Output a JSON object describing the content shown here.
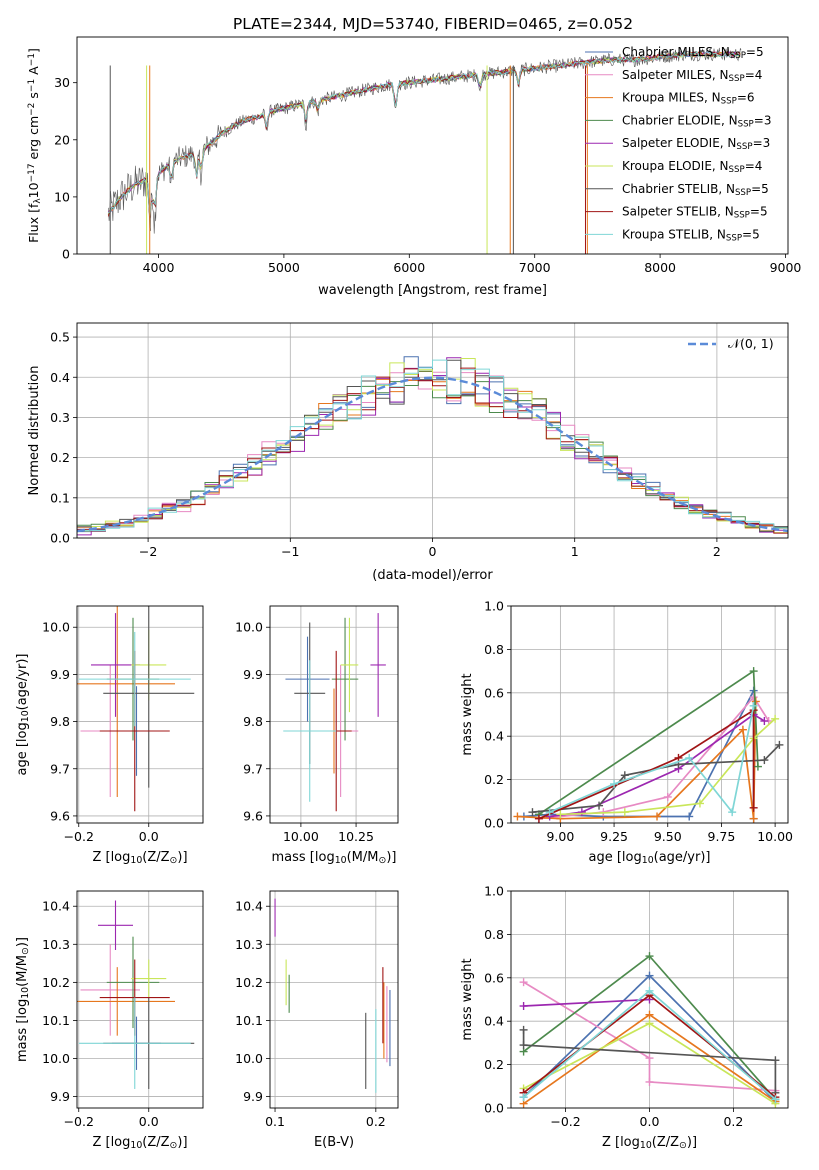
{
  "title": "PLATE=2344, MJD=53740, FIBERID=0465, z=0.052",
  "colors": [
    "#4c72b0",
    "#e78ac3",
    "#e6771e",
    "#4d8a4d",
    "#9c27b0",
    "#c9e65a",
    "#555555",
    "#a01515",
    "#7fd6d6"
  ],
  "chart_data": [
    {
      "id": "spectrum",
      "type": "line",
      "xlabel": "wavelength [Angstrom, rest frame]",
      "ylabel": "Flux [f",
      "ylabel_sub": "λ",
      "ylabel_rest": "10",
      "ylabel_sup": "−17",
      "ylabel_end": " erg cm",
      "ylabel_sup2": "−2",
      "ylabel_s": " s",
      "ylabel_sup3": "−1",
      "ylabel_A": " A",
      "ylabel_sup4": "−1",
      "ylabel_close": "]",
      "xlim": [
        3350,
        9020
      ],
      "ylim": [
        0,
        38
      ],
      "xticks": [
        4000,
        5000,
        6000,
        7000,
        8000,
        9000
      ],
      "yticks": [
        0,
        10,
        20,
        30
      ],
      "continuum": [
        [
          3600,
          7
        ],
        [
          3700,
          10
        ],
        [
          3800,
          12
        ],
        [
          3900,
          13
        ],
        [
          4000,
          14
        ],
        [
          4100,
          16
        ],
        [
          4200,
          17
        ],
        [
          4300,
          17.5
        ],
        [
          4400,
          19
        ],
        [
          4500,
          21
        ],
        [
          4600,
          22.5
        ],
        [
          4700,
          23.5
        ],
        [
          4800,
          24
        ],
        [
          4900,
          25
        ],
        [
          5000,
          25.5
        ],
        [
          5100,
          26
        ],
        [
          5200,
          26.5
        ],
        [
          5300,
          27
        ],
        [
          5400,
          27.5
        ],
        [
          5500,
          28
        ],
        [
          5600,
          28.5
        ],
        [
          5800,
          29.5
        ],
        [
          6000,
          30
        ],
        [
          6200,
          30.5
        ],
        [
          6400,
          31
        ],
        [
          6600,
          31.5
        ],
        [
          6800,
          32
        ],
        [
          7000,
          32.5
        ],
        [
          7200,
          33
        ],
        [
          7400,
          33.5
        ],
        [
          7600,
          34
        ],
        [
          7800,
          34
        ],
        [
          8000,
          34.5
        ],
        [
          8200,
          35
        ],
        [
          8400,
          35
        ],
        [
          8600,
          35
        ]
      ],
      "legend": [
        {
          "label": "Chabrier MILES, N",
          "sub": "SSP",
          "tail": "=5"
        },
        {
          "label": "Salpeter MILES, N",
          "sub": "SSP",
          "tail": "=4"
        },
        {
          "label": "Kroupa MILES, N",
          "sub": "SSP",
          "tail": "=6"
        },
        {
          "label": "Chabrier ELODIE, N",
          "sub": "SSP",
          "tail": "=3"
        },
        {
          "label": "Salpeter ELODIE, N",
          "sub": "SSP",
          "tail": "=3"
        },
        {
          "label": "Kroupa ELODIE, N",
          "sub": "SSP",
          "tail": "=4"
        },
        {
          "label": "Chabrier STELIB, N",
          "sub": "SSP",
          "tail": "=5"
        },
        {
          "label": "Salpeter STELIB, N",
          "sub": "SSP",
          "tail": "=5"
        },
        {
          "label": "Kroupa STELIB, N",
          "sub": "SSP",
          "tail": "=5"
        }
      ]
    },
    {
      "id": "residuals",
      "type": "bar",
      "xlabel": "(data-model)/error",
      "ylabel": "Normed distribution",
      "xlim": [
        -2.5,
        2.5
      ],
      "ylim": [
        0,
        0.535
      ],
      "xticks": [
        -2,
        -1,
        0,
        1,
        2
      ],
      "yticks": [
        0.0,
        0.1,
        0.2,
        0.3,
        0.4,
        0.5
      ],
      "legend_label": "𝒩(0, 1)",
      "bin_width": 0.1
    },
    {
      "id": "age_vs_Z",
      "type": "scatter",
      "xlabel": "Z [log",
      "xlabel_sub": "10",
      "xlabel_rest": "(Z/Z",
      "xlabel_sub2": "⊙",
      "xlabel_close": ")]",
      "ylabel": "age  [log",
      "ylabel_sub": "10",
      "ylabel_rest": "(age/yr)]",
      "xlim": [
        -0.205,
        0.155
      ],
      "ylim": [
        9.585,
        10.045
      ],
      "xticks": [
        -0.2,
        0.0
      ],
      "yticks": [
        9.6,
        9.7,
        9.8,
        9.9,
        10.0
      ],
      "points": [
        {
          "x": -0.035,
          "y": 9.78,
          "xerr": 0.07,
          "yerr": 0.095
        },
        {
          "x": -0.11,
          "y": 9.78,
          "xerr": 0.085,
          "yerr": 0.14
        },
        {
          "x": -0.09,
          "y": 9.88,
          "xerr": 0.165,
          "yerr": 0.24
        },
        {
          "x": -0.045,
          "y": 9.89,
          "xerr": 0.075,
          "yerr": 0.13
        },
        {
          "x": -0.095,
          "y": 9.92,
          "xerr": 0.07,
          "yerr": 0.11
        },
        {
          "x": 0.0,
          "y": 9.92,
          "xerr": 0.05,
          "yerr": 0.075
        },
        {
          "x": 0.0,
          "y": 9.86,
          "xerr": 0.13,
          "yerr": 0.2
        },
        {
          "x": -0.04,
          "y": 9.78,
          "xerr": 0.1,
          "yerr": 0.17
        },
        {
          "x": -0.04,
          "y": 9.89,
          "xerr": 0.16,
          "yerr": 0.1
        }
      ]
    },
    {
      "id": "age_vs_mass",
      "type": "scatter",
      "xlabel": "mass [log",
      "xlabel_sub": "10",
      "xlabel_rest": "(M/M",
      "xlabel_sub2": "⊙",
      "xlabel_close": ")]",
      "xlim": [
        9.86,
        10.44
      ],
      "ylim": [
        9.585,
        10.045
      ],
      "xticks": [
        10.0,
        10.25
      ],
      "xticklabels": [
        "10.00",
        "10.25"
      ],
      "yticks": [
        9.6,
        9.7,
        9.8,
        9.9,
        10.0
      ],
      "points": [
        {
          "x": 10.03,
          "y": 9.89,
          "xerr": 0.1,
          "yerr": 0.09
        },
        {
          "x": 10.18,
          "y": 9.78,
          "xerr": 0.08,
          "yerr": 0.14
        },
        {
          "x": 10.15,
          "y": 9.78,
          "xerr": 0.08,
          "yerr": 0.09
        },
        {
          "x": 10.2,
          "y": 9.89,
          "xerr": 0.06,
          "yerr": 0.13
        },
        {
          "x": 10.35,
          "y": 9.92,
          "xerr": 0.035,
          "yerr": 0.11
        },
        {
          "x": 10.22,
          "y": 9.92,
          "xerr": 0.04,
          "yerr": 0.1
        },
        {
          "x": 10.04,
          "y": 9.86,
          "xerr": 0.07,
          "yerr": 0.15
        },
        {
          "x": 10.16,
          "y": 9.78,
          "xerr": 0.07,
          "yerr": 0.17
        },
        {
          "x": 10.04,
          "y": 9.78,
          "xerr": 0.12,
          "yerr": 0.15
        }
      ]
    },
    {
      "id": "weight_vs_age",
      "type": "line",
      "xlabel": "age  [log",
      "xlabel_sub": "10",
      "xlabel_rest": "(age/yr)]",
      "ylabel": "mass weight",
      "xlim": [
        8.77,
        10.06
      ],
      "ylim": [
        0,
        1.0
      ],
      "xticks": [
        9.0,
        9.25,
        9.5,
        9.75,
        10.0
      ],
      "xticklabels": [
        "9.00",
        "9.25",
        "9.50",
        "9.75",
        "10.00"
      ],
      "yticks": [
        0.0,
        0.2,
        0.4,
        0.6,
        0.8,
        1.0
      ],
      "series": [
        {
          "x": [
            8.83,
            8.95,
            9.2,
            9.6,
            9.9,
            9.9
          ],
          "y": [
            0.03,
            0.04,
            0.03,
            0.03,
            0.61,
            0.02
          ]
        },
        {
          "x": [
            8.9,
            9.2,
            9.5,
            9.9,
            9.97
          ],
          "y": [
            0.02,
            0.05,
            0.12,
            0.58,
            0.47
          ]
        },
        {
          "x": [
            8.8,
            9.0,
            9.45,
            9.85,
            9.9,
            9.91
          ],
          "y": [
            0.03,
            0.02,
            0.03,
            0.43,
            0.02,
            0.56
          ]
        },
        {
          "x": [
            8.9,
            9.9,
            9.92
          ],
          "y": [
            0.04,
            0.7,
            0.26
          ]
        },
        {
          "x": [
            8.95,
            9.1,
            9.55,
            9.9,
            9.95
          ],
          "y": [
            0.03,
            0.05,
            0.25,
            0.5,
            0.47
          ]
        },
        {
          "x": [
            9.0,
            9.3,
            9.65,
            9.9,
            10.0
          ],
          "y": [
            0.04,
            0.05,
            0.09,
            0.39,
            0.48
          ]
        },
        {
          "x": [
            8.87,
            9.18,
            9.3,
            9.55,
            9.95,
            10.02
          ],
          "y": [
            0.05,
            0.08,
            0.22,
            0.27,
            0.29,
            0.36
          ]
        },
        {
          "x": [
            8.9,
            9.55,
            9.9,
            9.9
          ],
          "y": [
            0.02,
            0.3,
            0.52,
            0.07
          ]
        },
        {
          "x": [
            8.95,
            9.25,
            9.6,
            9.8,
            9.9
          ],
          "y": [
            0.05,
            0.18,
            0.3,
            0.05,
            0.54
          ]
        }
      ]
    },
    {
      "id": "mass_vs_Z",
      "type": "scatter",
      "xlabel": "Z [log",
      "xlabel_sub": "10",
      "xlabel_rest": "(Z/Z",
      "xlabel_sub2": "⊙",
      "xlabel_close": ")]",
      "ylabel": "mass [log",
      "ylabel_sub": "10",
      "ylabel_rest": "(M/M",
      "ylabel_sub2": "⊙",
      "ylabel_close": ")]",
      "xlim": [
        -0.205,
        0.155
      ],
      "ylim": [
        9.87,
        10.44
      ],
      "xticks": [
        -0.2,
        0.0
      ],
      "yticks": [
        9.9,
        10.0,
        10.1,
        10.2,
        10.3,
        10.4
      ],
      "points": [
        {
          "x": -0.035,
          "y": 10.04,
          "xerr": 0.07,
          "yerr": 0.07
        },
        {
          "x": -0.11,
          "y": 10.18,
          "xerr": 0.085,
          "yerr": 0.12
        },
        {
          "x": -0.09,
          "y": 10.15,
          "xerr": 0.165,
          "yerr": 0.09
        },
        {
          "x": -0.045,
          "y": 10.2,
          "xerr": 0.075,
          "yerr": 0.12
        },
        {
          "x": -0.095,
          "y": 10.35,
          "xerr": 0.05,
          "yerr": 0.065
        },
        {
          "x": 0.0,
          "y": 10.21,
          "xerr": 0.05,
          "yerr": 0.05
        },
        {
          "x": 0.0,
          "y": 10.04,
          "xerr": 0.13,
          "yerr": 0.12
        },
        {
          "x": -0.04,
          "y": 10.16,
          "xerr": 0.1,
          "yerr": 0.1
        },
        {
          "x": -0.04,
          "y": 10.04,
          "xerr": 0.16,
          "yerr": 0.12
        }
      ]
    },
    {
      "id": "mass_vs_ebv",
      "type": "scatter",
      "xlabel": "E(B-V)",
      "xlim": [
        0.095,
        0.222
      ],
      "ylim": [
        9.87,
        10.44
      ],
      "xticks": [
        0.1,
        0.2
      ],
      "xticklabels": [
        "0.1",
        "0.2"
      ],
      "yticks": [
        9.9,
        10.0,
        10.1,
        10.2,
        10.3,
        10.4
      ],
      "points": [
        {
          "x": 0.214,
          "y": 10.08,
          "yerr": 0.1
        },
        {
          "x": 0.211,
          "y": 10.09,
          "yerr": 0.1
        },
        {
          "x": 0.208,
          "y": 10.1,
          "yerr": 0.1
        },
        {
          "x": 0.114,
          "y": 10.17,
          "yerr": 0.05
        },
        {
          "x": 0.1,
          "y": 10.37,
          "yerr": 0.05
        },
        {
          "x": 0.111,
          "y": 10.2,
          "yerr": 0.06
        },
        {
          "x": 0.19,
          "y": 10.02,
          "yerr": 0.1
        },
        {
          "x": 0.207,
          "y": 10.14,
          "yerr": 0.1
        },
        {
          "x": 0.2,
          "y": 10.02,
          "yerr": 0.11
        }
      ]
    },
    {
      "id": "weight_vs_Z",
      "type": "line",
      "xlabel": "Z [log",
      "xlabel_sub": "10",
      "xlabel_rest": "(Z/Z",
      "xlabel_sub2": "⊙",
      "xlabel_close": ")]",
      "ylabel": "mass weight",
      "xlim": [
        -0.33,
        0.33
      ],
      "ylim": [
        0,
        1.0
      ],
      "xticks": [
        -0.2,
        0.0,
        0.2
      ],
      "xticklabels": [
        "−0.2",
        "0.0",
        "0.2"
      ],
      "yticks": [
        0.0,
        0.2,
        0.4,
        0.6,
        0.8,
        1.0
      ],
      "series": [
        {
          "x": [
            -0.3,
            0.0,
            0.3
          ],
          "y": [
            0.05,
            0.61,
            0.03
          ]
        },
        {
          "x": [
            -0.3,
            0.0,
            0.0,
            0.3
          ],
          "y": [
            0.58,
            0.23,
            0.12,
            0.08
          ]
        },
        {
          "x": [
            -0.3,
            0.0,
            0.3
          ],
          "y": [
            0.02,
            0.43,
            0.03
          ]
        },
        {
          "x": [
            -0.3,
            0.0,
            0.3
          ],
          "y": [
            0.26,
            0.7,
            0.04
          ]
        },
        {
          "x": [
            -0.3,
            0.0
          ],
          "y": [
            0.47,
            0.5
          ]
        },
        {
          "x": [
            -0.3,
            0.0,
            0.3
          ],
          "y": [
            0.09,
            0.39,
            0.02
          ]
        },
        {
          "x": [
            -0.3,
            -0.3,
            0.3,
            0.3
          ],
          "y": [
            0.36,
            0.29,
            0.22,
            0.07
          ]
        },
        {
          "x": [
            -0.3,
            -0.3,
            0.0,
            0.3
          ],
          "y": [
            0.07,
            0.07,
            0.52,
            0.05
          ]
        },
        {
          "x": [
            -0.3,
            0.0,
            0.3
          ],
          "y": [
            0.05,
            0.54,
            0.04
          ]
        }
      ]
    }
  ]
}
